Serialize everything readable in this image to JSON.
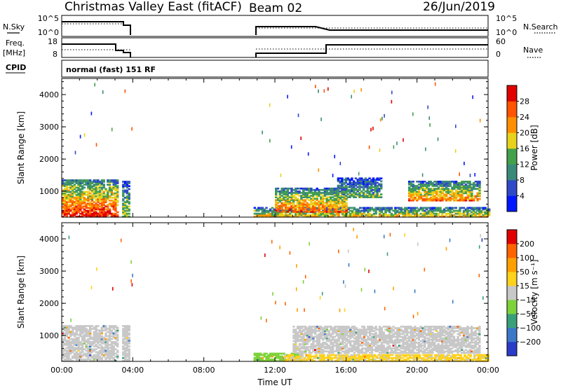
{
  "header": {
    "title": "Christmas Valley East (fitACF)",
    "beam": "Beam 02",
    "date": "26/Jun/2019"
  },
  "status": {
    "nsky_label": "N.Sky",
    "nsky_ticks": [
      "10^5",
      "10^0"
    ],
    "nsearch_label": "N.Search",
    "nsearch_ticks": [
      "10^5",
      "10^0"
    ],
    "freq_label": "Freq.",
    "freq_unit": "[MHz]",
    "freq_ticks": [
      "18",
      "8"
    ],
    "nave_label": "Nave",
    "nave_ticks": [
      "60",
      "0"
    ],
    "cpid_label": "CPID",
    "cpid_value": "normal (fast) 151 RF"
  },
  "chart_data": [
    {
      "type": "heatmap",
      "name": "power-panel",
      "xlabel": "",
      "ylabel": "Slant Range [km]",
      "xlim": [
        0,
        24
      ],
      "ylim": [
        200,
        4500
      ],
      "yticks": [
        1000,
        2000,
        3000,
        4000
      ],
      "colorbar_label": "Power [dB]",
      "colorbar_levels": [
        "4",
        "8",
        "12",
        "16",
        "20",
        "24",
        "28"
      ],
      "colorbar_range": [
        0,
        32
      ],
      "colorbar_colors": [
        "#0018ff",
        "#2f49c8",
        "#3a8a7a",
        "#43a04b",
        "#e8d21c",
        "#ff8f00",
        "#ff5400",
        "#e00000"
      ],
      "echo_regions": [
        {
          "t0": 0.0,
          "t1": 3.1,
          "r0": 200,
          "r1": 1350,
          "peak": 30
        },
        {
          "t0": 3.4,
          "t1": 3.75,
          "r0": 200,
          "r1": 1300,
          "peak": 18
        },
        {
          "t0": 10.8,
          "t1": 24.0,
          "r0": 200,
          "r1": 500,
          "peak": 20
        },
        {
          "t0": 12.0,
          "t1": 16.0,
          "r0": 350,
          "r1": 1100,
          "peak": 26
        },
        {
          "t0": 15.5,
          "t1": 18.0,
          "r0": 800,
          "r1": 1400,
          "peak": 14
        },
        {
          "t0": 19.5,
          "t1": 23.5,
          "r0": 700,
          "r1": 1300,
          "peak": 24
        }
      ]
    },
    {
      "type": "heatmap",
      "name": "velocity-panel",
      "xlabel": "Time UT",
      "ylabel": "Slant Range [km]",
      "xlim": [
        0,
        24
      ],
      "ylim": [
        200,
        4500
      ],
      "yticks": [
        1000,
        2000,
        3000,
        4000
      ],
      "xticks": [
        "00:00",
        "04:00",
        "08:00",
        "12:00",
        "16:00",
        "20:00",
        "00:00"
      ],
      "colorbar_label": "Velocity [m s⁻¹]",
      "colorbar_levels": [
        "200",
        "100",
        "50",
        "15",
        "−15",
        "−50",
        "−100",
        "−200"
      ],
      "colorbar_range": [
        -250,
        250
      ],
      "colorbar_colors": [
        "#2a3cc8",
        "#3c78c8",
        "#3aa07a",
        "#7ed23a",
        "#c8c8c8",
        "#ffd21c",
        "#ffa000",
        "#ff6400",
        "#e00000"
      ],
      "echo_regions": [
        {
          "t0": 0.0,
          "t1": 3.1,
          "r0": 200,
          "r1": 1300,
          "vel": 0
        },
        {
          "t0": 3.4,
          "t1": 3.75,
          "r0": 200,
          "r1": 1300,
          "vel": 0
        },
        {
          "t0": 10.8,
          "t1": 13.5,
          "r0": 200,
          "r1": 450,
          "vel": -60
        },
        {
          "t0": 12.5,
          "t1": 24.0,
          "r0": 200,
          "r1": 400,
          "vel": 40
        },
        {
          "t0": 13.0,
          "t1": 23.5,
          "r0": 450,
          "r1": 1300,
          "vel": 0
        }
      ]
    }
  ]
}
